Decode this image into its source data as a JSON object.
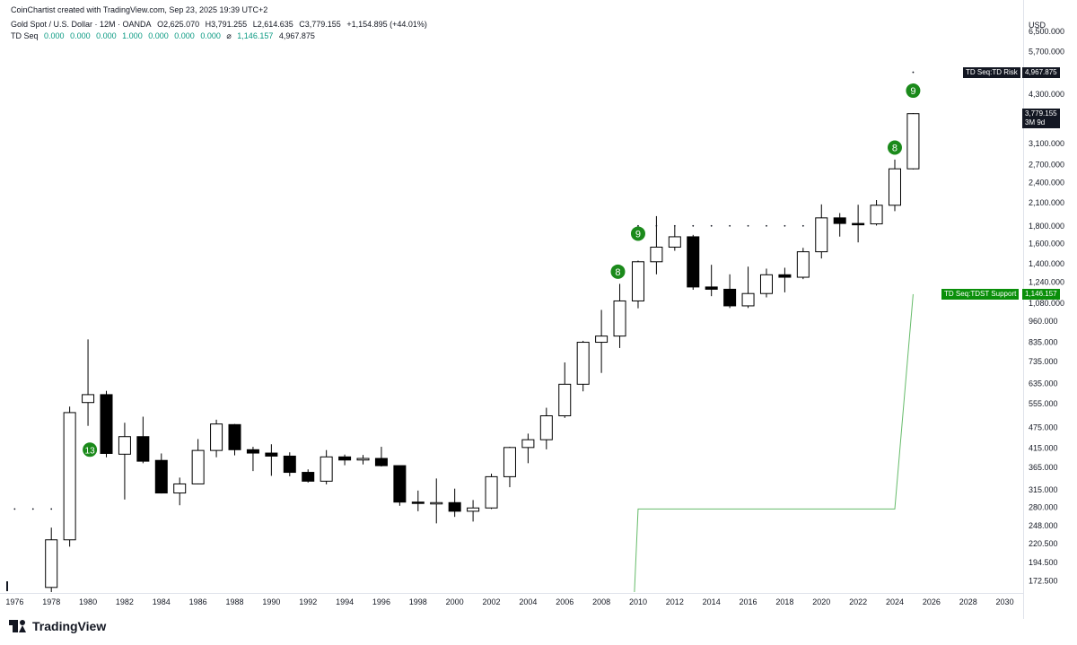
{
  "header": {
    "credit": "CoinChartist created with TradingView.com, Sep 23, 2025 19:39 UTC+2",
    "symbol": "Gold Spot / U.S. Dollar · 12M · OANDA",
    "open": "O2,625.070",
    "high": "H3,791.255",
    "low": "L2,614.635",
    "close": "C3,779.155",
    "change": "+1,154.895 (+44.01%)",
    "indicator_name": "TD Seq",
    "indicator_values": [
      "0.000",
      "0.000",
      "0.000",
      "1.000",
      "0.000",
      "0.000",
      "0.000"
    ],
    "indicator_symbol": "⌀",
    "indicator_support": "1,146.157",
    "indicator_risk": "4,967.875"
  },
  "currency_label": "USD",
  "tags": {
    "td_risk_label": "TD Seq:TD Risk",
    "td_risk_value": "4,967.875",
    "price_value": "3,779.155",
    "price_countdown": "3M 9d",
    "tdst_label": "TD Seq:TDST Support",
    "tdst_value": "1,146.157"
  },
  "footer": {
    "brand": "TradingView"
  },
  "colors": {
    "up_candle_fill": "#ffffff",
    "down_candle_fill": "#000000",
    "candle_outline": "#000000",
    "td_marker": "#1b8a1b",
    "tdst_line": "#66bb6a",
    "tag_dark": "#131722",
    "tag_green": "#0a8f0a"
  },
  "chart_data": {
    "type": "candlestick",
    "y_scale": "log",
    "ylim": [
      160,
      7200
    ],
    "xlim": [
      1975.2,
      2031
    ],
    "y_ticks": [
      6500,
      5700,
      4300,
      3100,
      2700,
      2400,
      2100,
      1800,
      1600,
      1400,
      1240,
      1080,
      960,
      835,
      735,
      635,
      555,
      475,
      415,
      365,
      315,
      280,
      248,
      220.5,
      194.5,
      172.5
    ],
    "y_tick_labels": [
      "6,500.000",
      "5,700.000",
      "4,300.000",
      "3,100.000",
      "2,700.000",
      "2,400.000",
      "2,100.000",
      "1,800.000",
      "1,600.000",
      "1,400.000",
      "1,240.000",
      "1,080.000",
      "960.000",
      "835.000",
      "735.000",
      "635.000",
      "555.000",
      "475.000",
      "415.000",
      "365.000",
      "315.000",
      "280.000",
      "248.000",
      "220.500",
      "194.500",
      "172.500"
    ],
    "x_ticks": [
      1976,
      1978,
      1980,
      1982,
      1984,
      1986,
      1988,
      1990,
      1992,
      1994,
      1996,
      1998,
      2000,
      2002,
      2004,
      2006,
      2008,
      2010,
      2012,
      2014,
      2016,
      2018,
      2020,
      2022,
      2024,
      2026,
      2028,
      2030
    ],
    "candles": [
      {
        "year": 1978,
        "open": 165,
        "high": 245,
        "low": 160,
        "close": 226
      },
      {
        "year": 1979,
        "open": 226,
        "high": 545,
        "low": 216,
        "close": 524
      },
      {
        "year": 1980,
        "open": 560,
        "high": 850,
        "low": 480,
        "close": 590
      },
      {
        "year": 1981,
        "open": 590,
        "high": 605,
        "low": 390,
        "close": 400
      },
      {
        "year": 1982,
        "open": 398,
        "high": 490,
        "low": 295,
        "close": 447
      },
      {
        "year": 1983,
        "open": 447,
        "high": 510,
        "low": 375,
        "close": 380
      },
      {
        "year": 1984,
        "open": 382,
        "high": 400,
        "low": 307,
        "close": 308
      },
      {
        "year": 1985,
        "open": 308,
        "high": 341,
        "low": 284,
        "close": 327
      },
      {
        "year": 1986,
        "open": 327,
        "high": 440,
        "low": 326,
        "close": 408
      },
      {
        "year": 1987,
        "open": 408,
        "high": 500,
        "low": 390,
        "close": 486
      },
      {
        "year": 1988,
        "open": 484,
        "high": 486,
        "low": 395,
        "close": 410
      },
      {
        "year": 1989,
        "open": 410,
        "high": 418,
        "low": 356,
        "close": 401
      },
      {
        "year": 1990,
        "open": 401,
        "high": 425,
        "low": 345,
        "close": 393
      },
      {
        "year": 1991,
        "open": 393,
        "high": 403,
        "low": 344,
        "close": 353
      },
      {
        "year": 1992,
        "open": 353,
        "high": 360,
        "low": 330,
        "close": 333
      },
      {
        "year": 1993,
        "open": 333,
        "high": 409,
        "low": 326,
        "close": 391
      },
      {
        "year": 1994,
        "open": 391,
        "high": 397,
        "low": 370,
        "close": 383
      },
      {
        "year": 1995,
        "open": 383,
        "high": 396,
        "low": 372,
        "close": 387
      },
      {
        "year": 1996,
        "open": 387,
        "high": 418,
        "low": 367,
        "close": 369
      },
      {
        "year": 1997,
        "open": 369,
        "high": 368,
        "low": 283,
        "close": 290
      },
      {
        "year": 1998,
        "open": 290,
        "high": 313,
        "low": 273,
        "close": 288
      },
      {
        "year": 1999,
        "open": 288,
        "high": 339,
        "low": 252,
        "close": 289
      },
      {
        "year": 2000,
        "open": 289,
        "high": 317,
        "low": 263,
        "close": 273
      },
      {
        "year": 2001,
        "open": 273,
        "high": 294,
        "low": 255,
        "close": 279
      },
      {
        "year": 2002,
        "open": 279,
        "high": 350,
        "low": 277,
        "close": 343
      },
      {
        "year": 2003,
        "open": 343,
        "high": 418,
        "low": 320,
        "close": 416
      },
      {
        "year": 2004,
        "open": 416,
        "high": 456,
        "low": 375,
        "close": 438
      },
      {
        "year": 2005,
        "open": 438,
        "high": 541,
        "low": 411,
        "close": 513
      },
      {
        "year": 2006,
        "open": 513,
        "high": 730,
        "low": 506,
        "close": 632
      },
      {
        "year": 2007,
        "open": 632,
        "high": 842,
        "low": 603,
        "close": 834
      },
      {
        "year": 2008,
        "open": 834,
        "high": 1033,
        "low": 681,
        "close": 869
      },
      {
        "year": 2009,
        "open": 869,
        "high": 1227,
        "low": 803,
        "close": 1096
      },
      {
        "year": 2010,
        "open": 1096,
        "high": 1431,
        "low": 1044,
        "close": 1420
      },
      {
        "year": 2011,
        "open": 1420,
        "high": 1920,
        "low": 1307,
        "close": 1564
      },
      {
        "year": 2012,
        "open": 1564,
        "high": 1795,
        "low": 1527,
        "close": 1675
      },
      {
        "year": 2013,
        "open": 1675,
        "high": 1696,
        "low": 1180,
        "close": 1202
      },
      {
        "year": 2014,
        "open": 1202,
        "high": 1392,
        "low": 1131,
        "close": 1184
      },
      {
        "year": 2015,
        "open": 1184,
        "high": 1307,
        "low": 1046,
        "close": 1061
      },
      {
        "year": 2016,
        "open": 1061,
        "high": 1375,
        "low": 1046,
        "close": 1151
      },
      {
        "year": 2017,
        "open": 1151,
        "high": 1357,
        "low": 1122,
        "close": 1303
      },
      {
        "year": 2018,
        "open": 1303,
        "high": 1365,
        "low": 1160,
        "close": 1282
      },
      {
        "year": 2019,
        "open": 1282,
        "high": 1557,
        "low": 1266,
        "close": 1517
      },
      {
        "year": 2020,
        "open": 1517,
        "high": 2075,
        "low": 1451,
        "close": 1898
      },
      {
        "year": 2021,
        "open": 1898,
        "high": 1959,
        "low": 1677,
        "close": 1829
      },
      {
        "year": 2022,
        "open": 1829,
        "high": 2070,
        "low": 1614,
        "close": 1824
      },
      {
        "year": 2023,
        "open": 1824,
        "high": 2135,
        "low": 1804,
        "close": 2063
      },
      {
        "year": 2024,
        "open": 2063,
        "high": 2790,
        "low": 1984,
        "close": 2625
      },
      {
        "year": 2025,
        "open": 2625.07,
        "high": 3791.255,
        "low": 2614.635,
        "close": 3779.155
      }
    ],
    "td_markers": [
      {
        "year": 1980.1,
        "label": "13",
        "price": 410
      },
      {
        "year": 2008.9,
        "label": "8",
        "price": 1330
      },
      {
        "year": 2010.0,
        "label": "9",
        "price": 1710
      },
      {
        "year": 2024.0,
        "label": "8",
        "price": 3020
      },
      {
        "year": 2025.0,
        "label": "9",
        "price": 4400
      }
    ],
    "td_dots": [
      {
        "year": 1976,
        "price": 277
      },
      {
        "year": 1977,
        "price": 277
      },
      {
        "year": 1978,
        "price": 277
      },
      {
        "year": 2010,
        "price": 1800
      },
      {
        "year": 2011,
        "price": 1800
      },
      {
        "year": 2012,
        "price": 1800
      },
      {
        "year": 2013,
        "price": 1800
      },
      {
        "year": 2014,
        "price": 1800
      },
      {
        "year": 2015,
        "price": 1800
      },
      {
        "year": 2016,
        "price": 1800
      },
      {
        "year": 2017,
        "price": 1800
      },
      {
        "year": 2018,
        "price": 1800
      },
      {
        "year": 2019,
        "price": 1800
      },
      {
        "year": 2025,
        "price": 4967.875
      }
    ],
    "tdst_line": [
      {
        "year": 2009.8,
        "price": 160
      },
      {
        "year": 2010.0,
        "price": 277
      },
      {
        "year": 2024.0,
        "price": 277
      },
      {
        "year": 2025.0,
        "price": 1146.157
      }
    ],
    "td_risk": 4967.875,
    "last_price": 3779.155,
    "tdst_support": 1146.157
  }
}
